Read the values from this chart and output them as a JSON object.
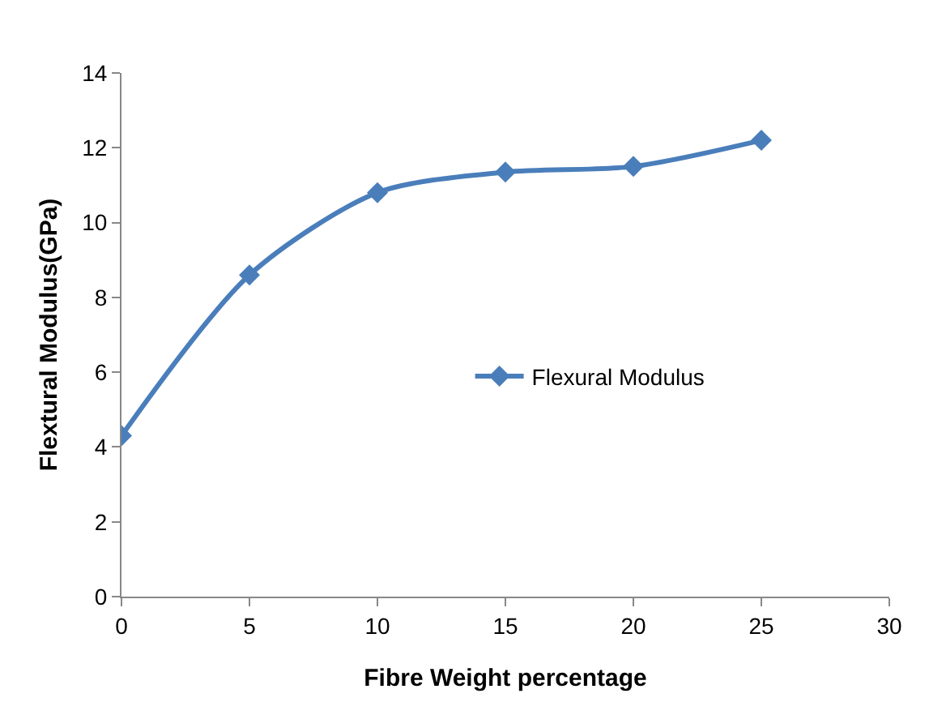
{
  "chart_data": {
    "type": "line",
    "xlabel": "Fibre Weight percentage",
    "ylabel": "Flextural Modulus(GPa)",
    "x": [
      0,
      5,
      10,
      15,
      20,
      25
    ],
    "series": [
      {
        "name": "Flexural Modulus",
        "color": "#4a7ebb",
        "values": [
          4.3,
          8.6,
          10.8,
          11.35,
          11.5,
          12.2
        ]
      }
    ],
    "xlim": [
      0,
      30
    ],
    "xticks": [
      0,
      5,
      10,
      15,
      20,
      25,
      30
    ],
    "ylim": [
      0,
      14
    ],
    "yticks": [
      0,
      2,
      4,
      6,
      8,
      10,
      12,
      14
    ],
    "grid": false,
    "legend": "right",
    "marker": "diamond",
    "line_style": "solid"
  }
}
